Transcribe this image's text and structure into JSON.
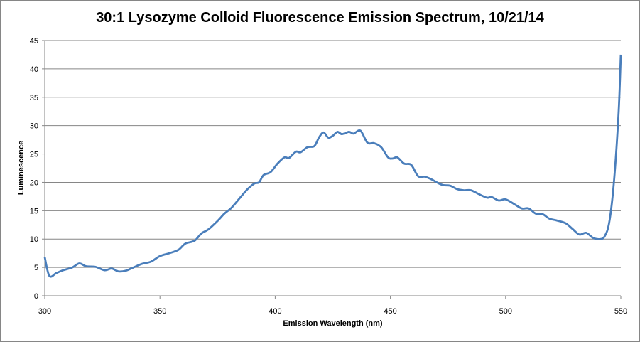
{
  "chart_data": {
    "type": "line",
    "title": "30:1 Lysozyme Colloid Fluorescence Emission Spectrum, 10/21/14",
    "xlabel": "Emission Wavelength (nm)",
    "ylabel": "Luminescence",
    "xlim": [
      300,
      550
    ],
    "ylim": [
      0,
      45
    ],
    "xticks": [
      300,
      350,
      400,
      450,
      500,
      550
    ],
    "yticks": [
      0,
      5,
      10,
      15,
      20,
      25,
      30,
      35,
      40,
      45
    ],
    "grid": "horizontal",
    "legend": "none",
    "series": [
      {
        "name": "Luminescence",
        "color": "#4a7ebb",
        "x": [
          300,
          302,
          305,
          308,
          312,
          315,
          318,
          322,
          326,
          329,
          332,
          335,
          338,
          342,
          346,
          350,
          354,
          358,
          361,
          365,
          368,
          371,
          375,
          378,
          381,
          385,
          388,
          391,
          393,
          395,
          398,
          401,
          404,
          406,
          409,
          411,
          414,
          417,
          419,
          421,
          423,
          425,
          427,
          429,
          432,
          434,
          437,
          440,
          443,
          446,
          449,
          451,
          453,
          456,
          459,
          462,
          465,
          468,
          471,
          473,
          476,
          479,
          482,
          485,
          489,
          492,
          494,
          497,
          500,
          504,
          507,
          510,
          513,
          516,
          519,
          522,
          526,
          529,
          532,
          535,
          538,
          541,
          543,
          545,
          547,
          549,
          550
        ],
        "y": [
          6.8,
          3.5,
          4.0,
          4.5,
          5.0,
          5.7,
          5.2,
          5.1,
          4.5,
          4.8,
          4.3,
          4.4,
          4.9,
          5.6,
          6.0,
          7.0,
          7.5,
          8.1,
          9.2,
          9.7,
          11.0,
          11.7,
          13.2,
          14.5,
          15.5,
          17.4,
          18.8,
          19.8,
          20.0,
          21.3,
          21.8,
          23.3,
          24.4,
          24.3,
          25.4,
          25.3,
          26.2,
          26.4,
          27.9,
          28.8,
          27.9,
          28.2,
          28.9,
          28.5,
          28.9,
          28.6,
          29.1,
          27.0,
          26.9,
          26.2,
          24.4,
          24.2,
          24.4,
          23.3,
          23.1,
          21.1,
          21.0,
          20.5,
          19.8,
          19.5,
          19.4,
          18.8,
          18.6,
          18.6,
          17.8,
          17.3,
          17.4,
          16.8,
          17.0,
          16.1,
          15.4,
          15.4,
          14.5,
          14.4,
          13.6,
          13.3,
          12.8,
          11.8,
          10.8,
          11.1,
          10.2,
          10.0,
          10.5,
          13.0,
          20.0,
          32.0,
          42.5
        ]
      }
    ]
  }
}
